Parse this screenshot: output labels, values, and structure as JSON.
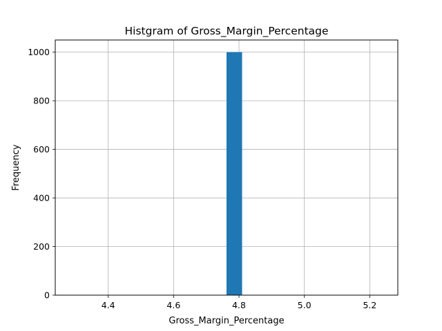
{
  "chart_data": {
    "type": "bar",
    "title": "Histgram of Gross_Margin_Percentage",
    "xlabel": "Gross_Margin_Percentage",
    "ylabel": "Frequency",
    "xlim": [
      4.2381,
      5.2857
    ],
    "ylim": [
      0,
      1050
    ],
    "xticks": [
      4.4,
      4.6,
      4.8,
      5.0,
      5.2
    ],
    "xtick_labels": [
      "4.4",
      "4.6",
      "4.8",
      "5.0",
      "5.2"
    ],
    "yticks": [
      0,
      200,
      400,
      600,
      800,
      1000
    ],
    "ytick_labels": [
      "0",
      "200",
      "400",
      "600",
      "800",
      "1000"
    ],
    "grid": true,
    "bars": [
      {
        "x0": 4.7619,
        "x1": 4.8095,
        "value": 1000
      }
    ],
    "colors": {
      "bar": "#1f77b4",
      "grid": "#b0b0b0",
      "axes": "#000000"
    }
  }
}
